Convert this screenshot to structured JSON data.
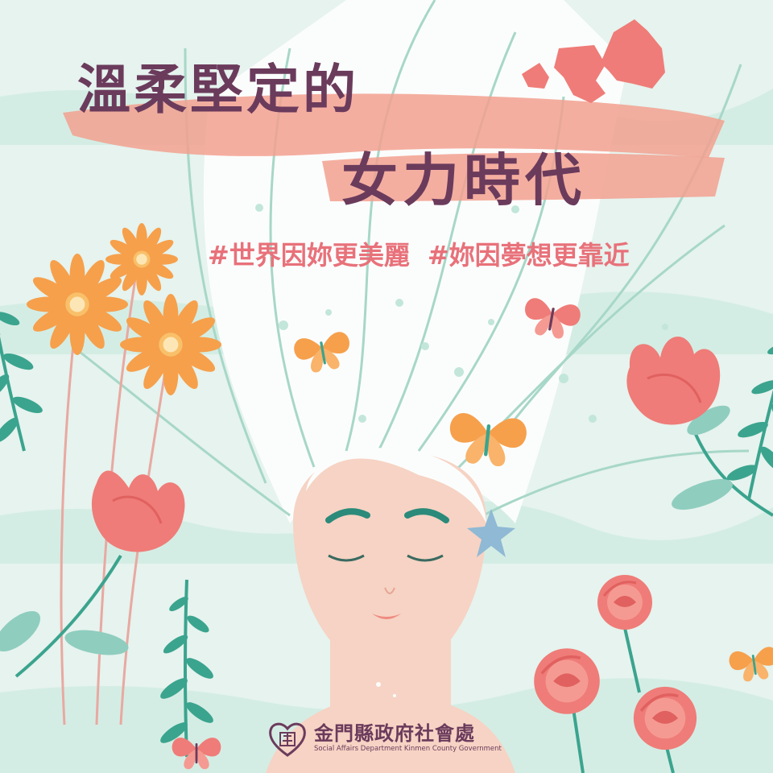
{
  "title": {
    "line1": "溫柔堅定的",
    "line2": "女力時代"
  },
  "hashtags": [
    "#世界因妳更美麗",
    "#妳因夢想更靠近"
  ],
  "logo": {
    "name_zh": "金門縣政府社會處",
    "name_en": "Social Affairs Department Kinmen County Government",
    "icon": "heart-seal-icon"
  },
  "colors": {
    "background": "#e6f3ee",
    "title": "#6b3b5c",
    "hashtag": "#e8717a",
    "brush": "#f2a08f",
    "skin": "#f6d3c4",
    "rose": "#ef7c78",
    "orange_flower": "#f6a04c",
    "leaf": "#3ba48e"
  }
}
